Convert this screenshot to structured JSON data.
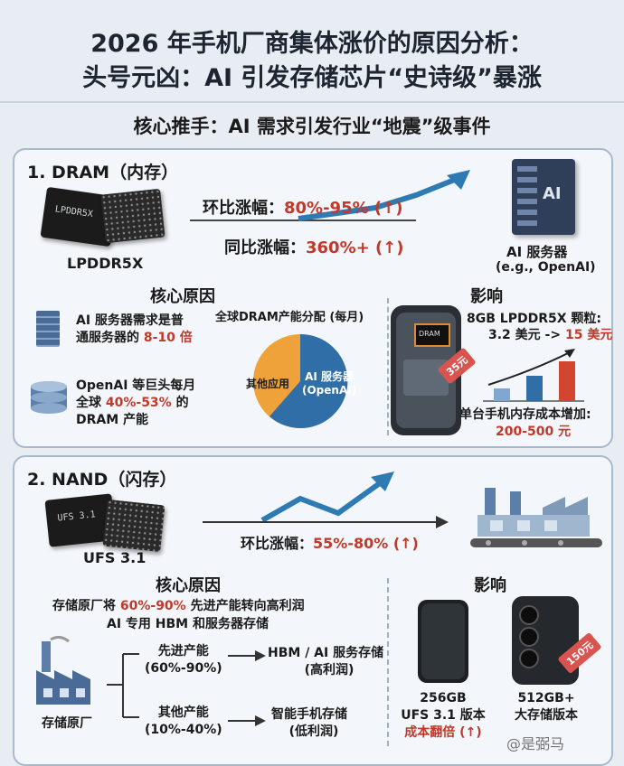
{
  "title": {
    "line1": "2026 年手机厂商集体涨价的原因分析：",
    "line2": "头号元凶：AI 引发存储芯片“史诗级”暴涨"
  },
  "subtitle": "核心推手：AI 需求引发行业“地震”级事件",
  "dram": {
    "section_title": "1. DRAM（内存）",
    "chip_name": "LPDDR5X",
    "chip_marking": "LPDDR5X",
    "mom_label": "环比涨幅：",
    "mom_value": "80%-95% (↑)",
    "yoy_label": "同比涨幅：",
    "yoy_value": "360%+ (↑)",
    "server_label": "AI 服务器",
    "server_sublabel": "(e.g., OpenAI)",
    "server_badge": "AI",
    "causes_title": "核心原因",
    "cause1_a": "AI 服务器需求是普",
    "cause1_b": "通服务器的 ",
    "cause1_hl": "8-10 倍",
    "cause2_a": "OpenAI 等巨头每月",
    "cause2_b": "全球 ",
    "cause2_hl": "40%-53%",
    "cause2_c": " 的",
    "cause2_d": "DRAM 产能",
    "pie_title": "全球DRAM产能分配 (每月)",
    "pie_other": "其他应用",
    "pie_ai_a": "AI 服务器",
    "pie_ai_b": "(OpenAI)",
    "impact_title": "影响",
    "impact_line1": "8GB LPDDR5X 颗粒:",
    "impact_line2_a": "3.2 美元 -> ",
    "impact_line2_hl": "15 美元",
    "impact_line3": "单台手机内存成本增加:",
    "impact_line4": "200-500 元",
    "phone_chip": "DRAM",
    "price_tag": "35元"
  },
  "nand": {
    "section_title": "2. NAND（闪存）",
    "chip_name": "UFS 3.1",
    "chip_marking": "UFS 3.1",
    "mom_label": "环比涨幅：",
    "mom_value": "55%-80% (↑)",
    "causes_title": "核心原因",
    "cause_a": "存储原厂将 ",
    "cause_hl": "60%-90%",
    "cause_b": " 先进产能转向高利润",
    "cause_c": "AI 专用 HBM 和服务器存储",
    "factory_label": "存储原厂",
    "branch1_a": "先进产能",
    "branch1_b": "(60%-90%)",
    "branch1_dest_a": "HBM / AI 服务存储",
    "branch1_dest_b": "(高利润)",
    "branch2_a": "其他产能",
    "branch2_b": "(10%-40%)",
    "branch2_dest_a": "智能手机存储",
    "branch2_dest_b": "(低利润)",
    "impact_title": "影响",
    "phone1_a": "256GB",
    "phone1_b": "UFS 3.1 版本",
    "phone1_c": "成本翻倍 (↑)",
    "phone2_a": "512GB+",
    "phone2_b": "大存储版本",
    "price_tag": "150元"
  },
  "watermark": "@是弼马"
}
